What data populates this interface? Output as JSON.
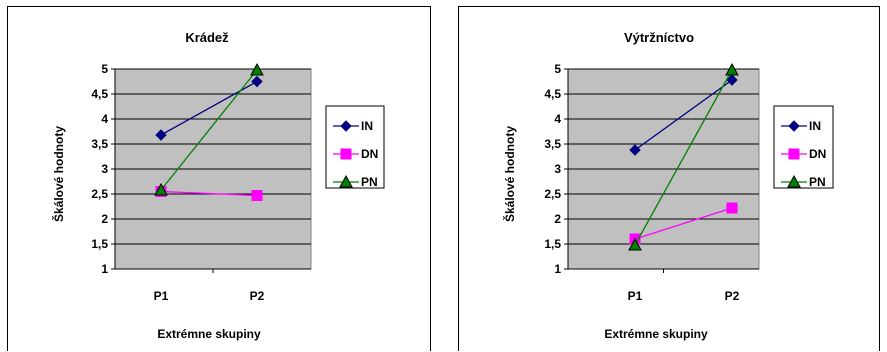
{
  "chart_data": [
    {
      "type": "line",
      "title": "Krádež",
      "xlabel": "Extrémne skupiny",
      "ylabel": "Škálové hodnoty",
      "categories": [
        "P1",
        "P2"
      ],
      "ylim": [
        1,
        5
      ],
      "yticks": [
        "1",
        "1,5",
        "2",
        "2,5",
        "3",
        "3,5",
        "4",
        "4,5",
        "5"
      ],
      "grid": true,
      "legend_position": "right",
      "series": [
        {
          "name": "IN",
          "values": [
            3.68,
            4.75
          ],
          "color": "#000080",
          "marker": "diamond"
        },
        {
          "name": "DN",
          "values": [
            2.55,
            2.47
          ],
          "color": "#ff00ff",
          "marker": "square"
        },
        {
          "name": "PN",
          "values": [
            2.58,
            4.98
          ],
          "color": "#008000",
          "marker": "triangle"
        }
      ]
    },
    {
      "type": "line",
      "title": "Výtržníctvo",
      "xlabel": "Extrémne skupiny",
      "ylabel": "Škálové hodnoty",
      "categories": [
        "P1",
        "P2"
      ],
      "ylim": [
        1,
        5
      ],
      "yticks": [
        "1",
        "1,5",
        "2",
        "2,5",
        "3",
        "3,5",
        "4",
        "4,5",
        "5"
      ],
      "grid": true,
      "legend_position": "right",
      "series": [
        {
          "name": "IN",
          "values": [
            3.38,
            4.78
          ],
          "color": "#000080",
          "marker": "diamond"
        },
        {
          "name": "DN",
          "values": [
            1.6,
            2.22
          ],
          "color": "#ff00ff",
          "marker": "square"
        },
        {
          "name": "PN",
          "values": [
            1.48,
            4.98
          ],
          "color": "#008000",
          "marker": "triangle"
        }
      ]
    }
  ]
}
